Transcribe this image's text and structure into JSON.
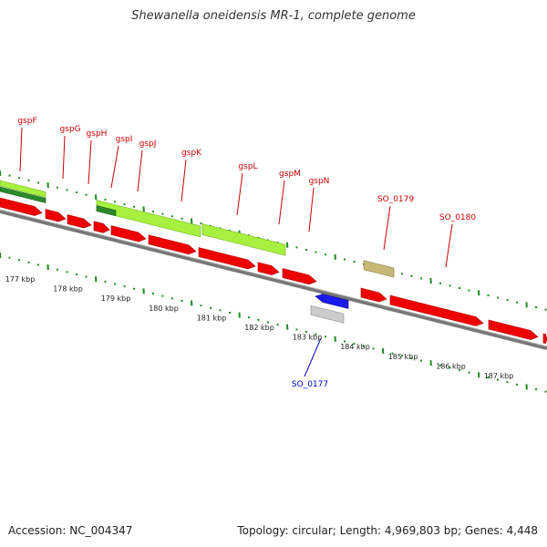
{
  "title": "Shewanella oneidensis MR-1, complete genome",
  "accession": "Accession: NC_004347",
  "stats": "Topology: circular; Length: 4,969,803 bp; Genes: 4,448",
  "colors": {
    "cds": "#ee0000",
    "gsp_operon": "#a8f040",
    "gsp_operon_dark": "#2a8a2a",
    "hypothetical": "#c8b878",
    "rna": "#1a1aee",
    "pseudo": "#cccccc",
    "label_red": "#cc0000",
    "label_blue": "#0000cc",
    "tick": "#1e8c1e"
  },
  "scale_labels": [
    "177 kbp",
    "178 kbp",
    "179 kbp",
    "180 kbp",
    "181 kbp",
    "182 kbp",
    "183 kbp",
    "184 kbp",
    "185 kbp",
    "186 kbp",
    "187 kbp"
  ],
  "gene_labels": [
    {
      "text": "gspF",
      "color": "red"
    },
    {
      "text": "gspG",
      "color": "red"
    },
    {
      "text": "gspH",
      "color": "red"
    },
    {
      "text": "gspI",
      "color": "red"
    },
    {
      "text": "gspJ",
      "color": "red"
    },
    {
      "text": "gspK",
      "color": "red"
    },
    {
      "text": "gspL",
      "color": "red"
    },
    {
      "text": "gspM",
      "color": "red"
    },
    {
      "text": "gspN",
      "color": "red"
    },
    {
      "text": "SO_0179",
      "color": "red"
    },
    {
      "text": "SO_0180",
      "color": "red"
    },
    {
      "text": "SO_0177",
      "color": "blue"
    }
  ]
}
